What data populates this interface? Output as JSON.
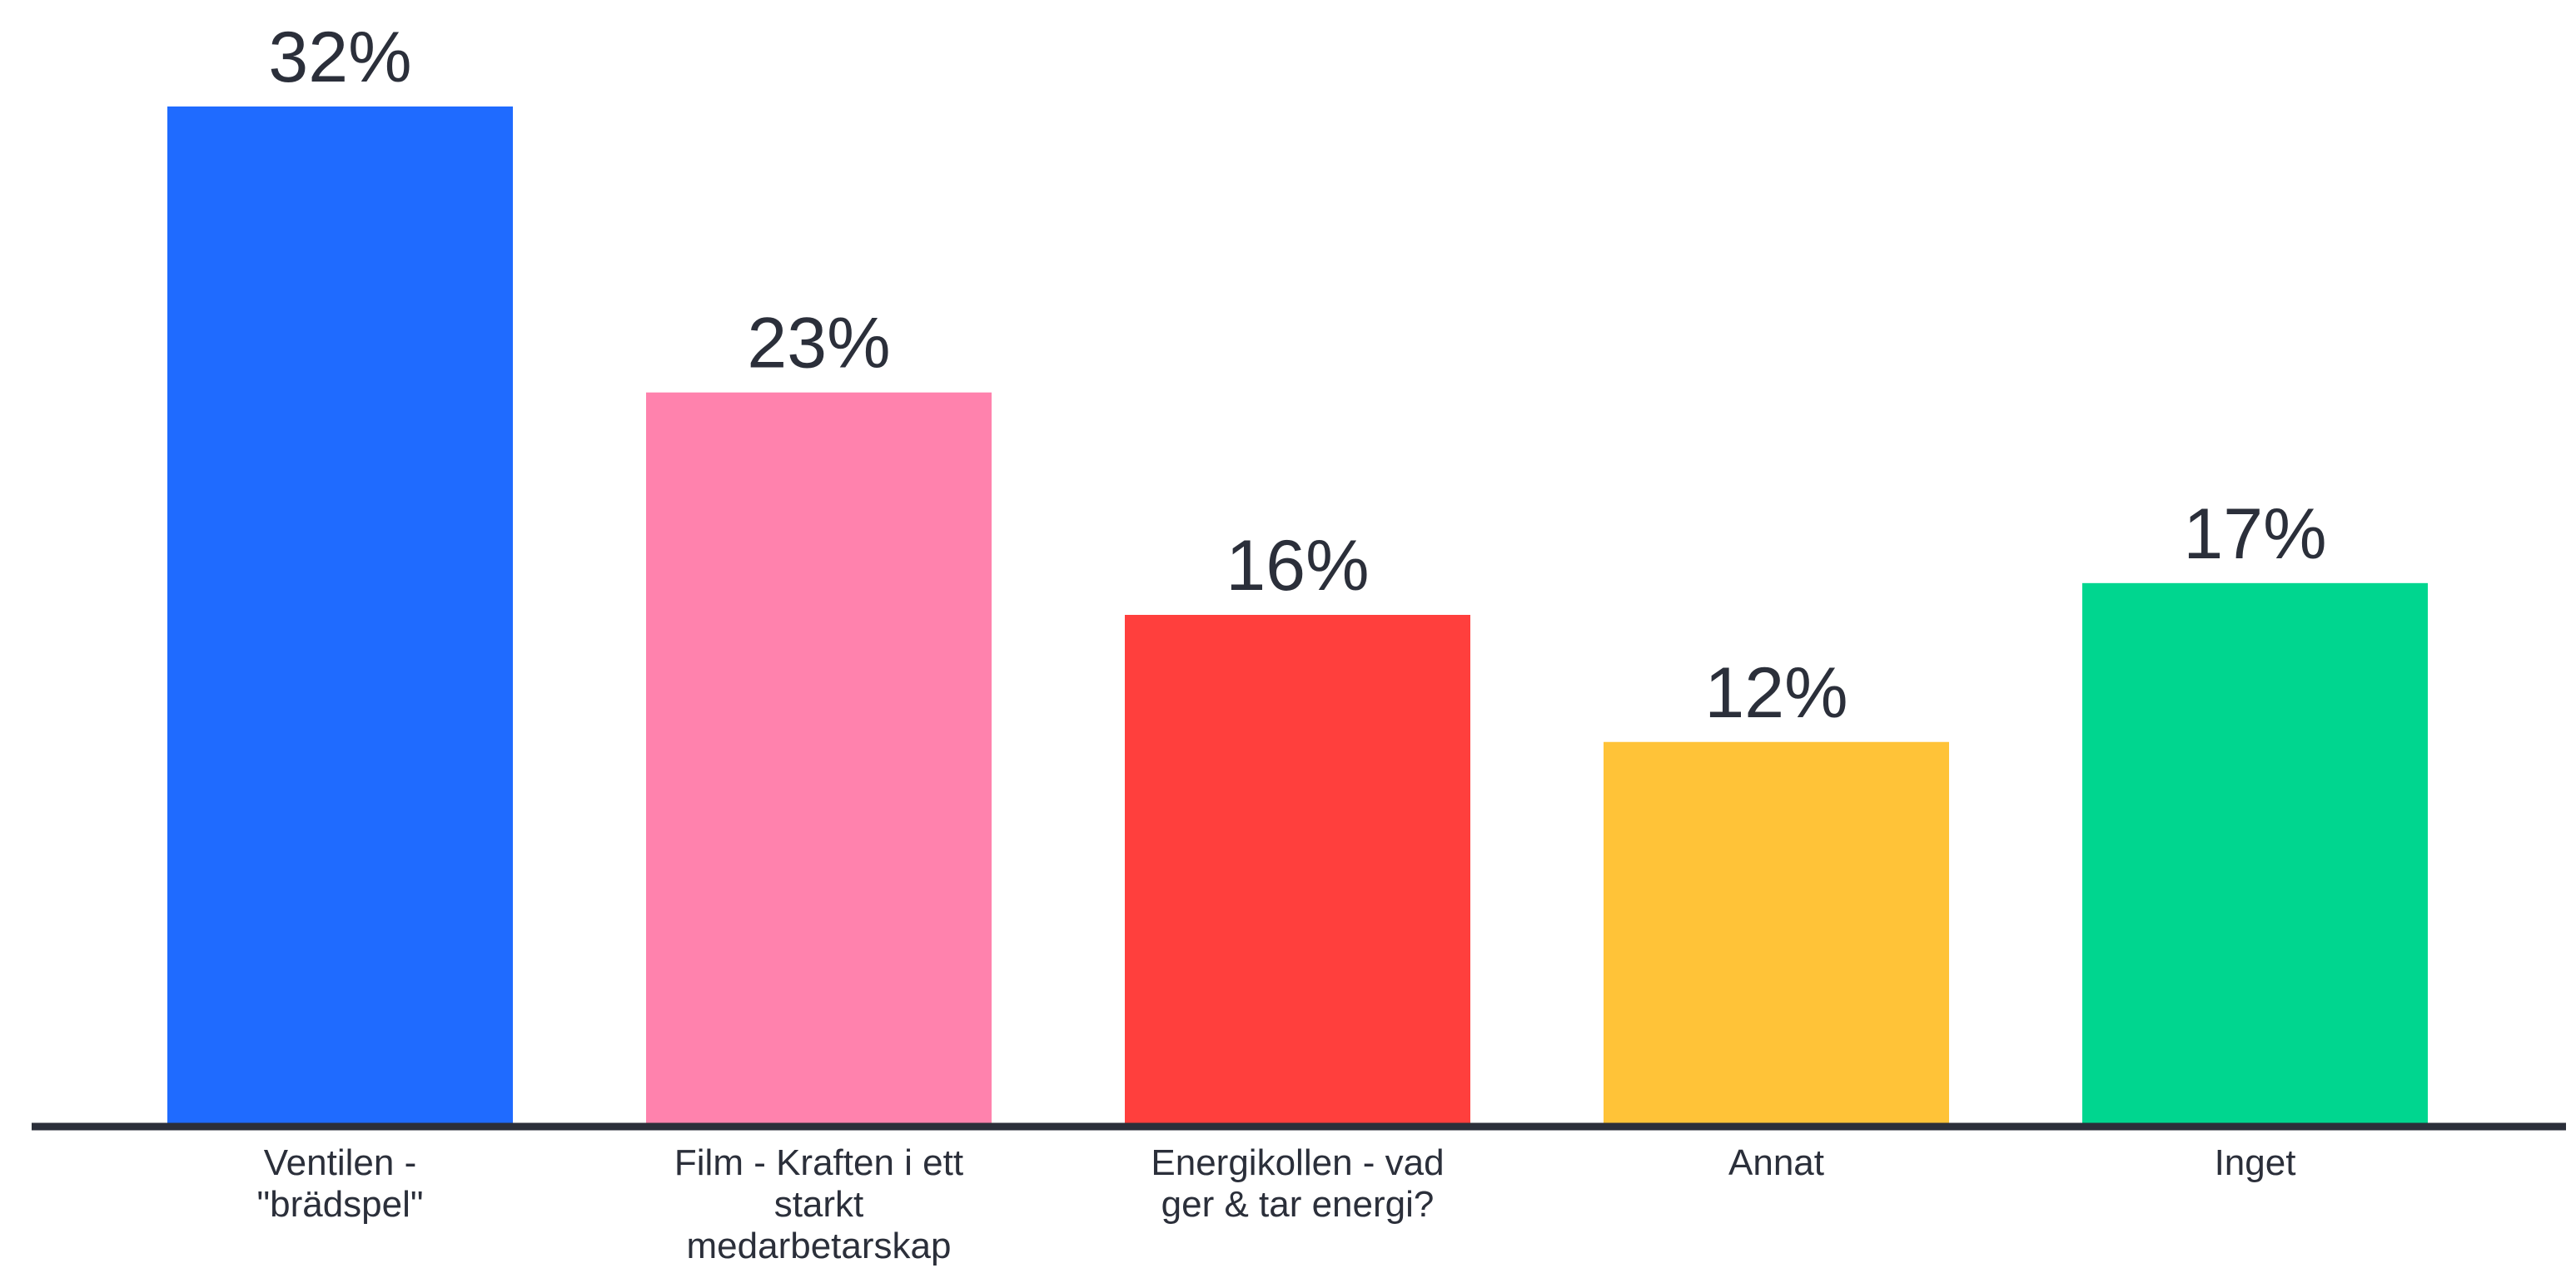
{
  "chart_data": {
    "type": "bar",
    "categories": [
      [
        "Ventilen -",
        "\"brädspel\""
      ],
      [
        "Film - Kraften i ett",
        "starkt",
        "medarbetarskap"
      ],
      [
        "Energikollen - vad",
        "ger & tar energi?"
      ],
      [
        "Annat"
      ],
      [
        "Inget"
      ]
    ],
    "values": [
      32,
      23,
      16,
      12,
      17
    ],
    "value_labels": [
      "32%",
      "23%",
      "16%",
      "12%",
      "17%"
    ],
    "colors": [
      "#1f6bff",
      "#ff82ad",
      "#ff3f3d",
      "#ffc338",
      "#00d68f"
    ],
    "axis_color": "#2b2f3a",
    "ylim": [
      0,
      32
    ],
    "title": "",
    "xlabel": "",
    "ylabel": "",
    "grid": false,
    "legend": "none"
  }
}
